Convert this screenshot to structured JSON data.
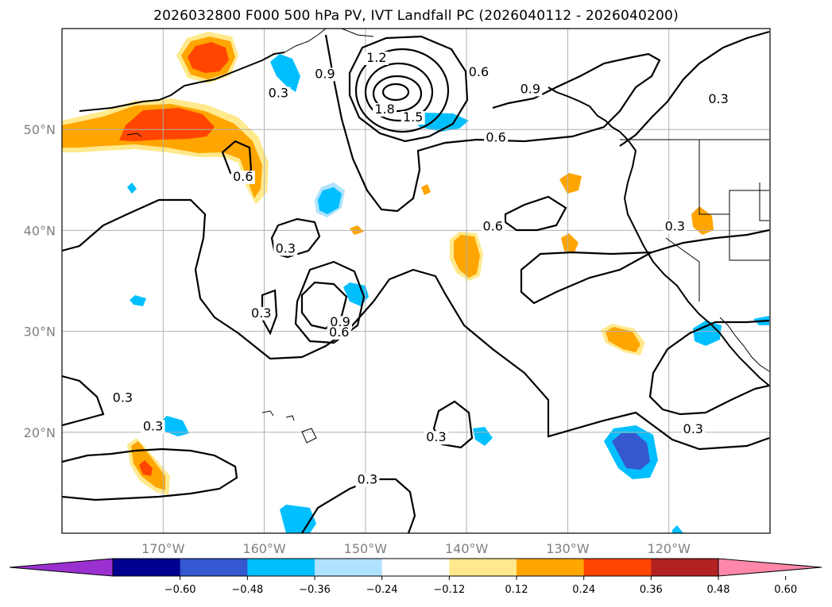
{
  "title": "2026032800 F000 500 hPa PV, IVT Landfall PC (2026040112 - 2026040200)",
  "map": {
    "lon_range": [
      -180,
      -110
    ],
    "lat_range": [
      10,
      60
    ],
    "lat_ticks": [
      {
        "value": 20,
        "label": "20°N"
      },
      {
        "value": 30,
        "label": "30°N"
      },
      {
        "value": 40,
        "label": "40°N"
      },
      {
        "value": 50,
        "label": "50°N"
      }
    ],
    "lon_ticks": [
      {
        "value": -170,
        "label": "170°W"
      },
      {
        "value": -160,
        "label": "160°W"
      },
      {
        "value": -150,
        "label": "150°W"
      },
      {
        "value": -140,
        "label": "140°W"
      },
      {
        "value": -130,
        "label": "130°W"
      },
      {
        "value": -120,
        "label": "120°W"
      }
    ],
    "grid": true
  },
  "contour_labels": [
    {
      "text": "1.2",
      "lon": -148.9,
      "lat": 56.7
    },
    {
      "text": "0.9",
      "lon": -154.0,
      "lat": 55.1
    },
    {
      "text": "1.8",
      "lon": -148.1,
      "lat": 51.6
    },
    {
      "text": "1.5",
      "lon": -145.3,
      "lat": 50.8
    },
    {
      "text": "0.6",
      "lon": -138.8,
      "lat": 55.3
    },
    {
      "text": "0.9",
      "lon": -133.7,
      "lat": 53.6
    },
    {
      "text": "0.6",
      "lon": -137.1,
      "lat": 48.8
    },
    {
      "text": "0.3",
      "lon": -158.6,
      "lat": 53.2
    },
    {
      "text": "0.3",
      "lon": -115.1,
      "lat": 52.6
    },
    {
      "text": "0.6",
      "lon": -162.1,
      "lat": 44.9
    },
    {
      "text": "0.6",
      "lon": -137.4,
      "lat": 40.0
    },
    {
      "text": "0.3",
      "lon": -119.4,
      "lat": 40.0
    },
    {
      "text": "0.3",
      "lon": -157.9,
      "lat": 37.8
    },
    {
      "text": "0.3",
      "lon": -160.3,
      "lat": 31.4
    },
    {
      "text": "0.9",
      "lon": -152.5,
      "lat": 30.5
    },
    {
      "text": "0.6",
      "lon": -152.6,
      "lat": 29.5
    },
    {
      "text": "0.3",
      "lon": -174.0,
      "lat": 23.0
    },
    {
      "text": "0.3",
      "lon": -171.0,
      "lat": 20.2
    },
    {
      "text": "0.3",
      "lon": -143.0,
      "lat": 19.1
    },
    {
      "text": "0.3",
      "lon": -117.6,
      "lat": 19.9
    },
    {
      "text": "0.3",
      "lon": -149.8,
      "lat": 14.9
    }
  ],
  "colorbar": {
    "colors": [
      "#9b30d0",
      "#000090",
      "#3558d0",
      "#00bfff",
      "#afe2ff",
      "#ffffff",
      "#ffe98c",
      "#ffa500",
      "#ff4500",
      "#b22222",
      "#ff88aa"
    ],
    "tick_labels": [
      "−0.60",
      "−0.48",
      "−0.36",
      "−0.24",
      "−0.12",
      "0.12",
      "0.24",
      "0.36",
      "0.48",
      "0.60"
    ]
  }
}
